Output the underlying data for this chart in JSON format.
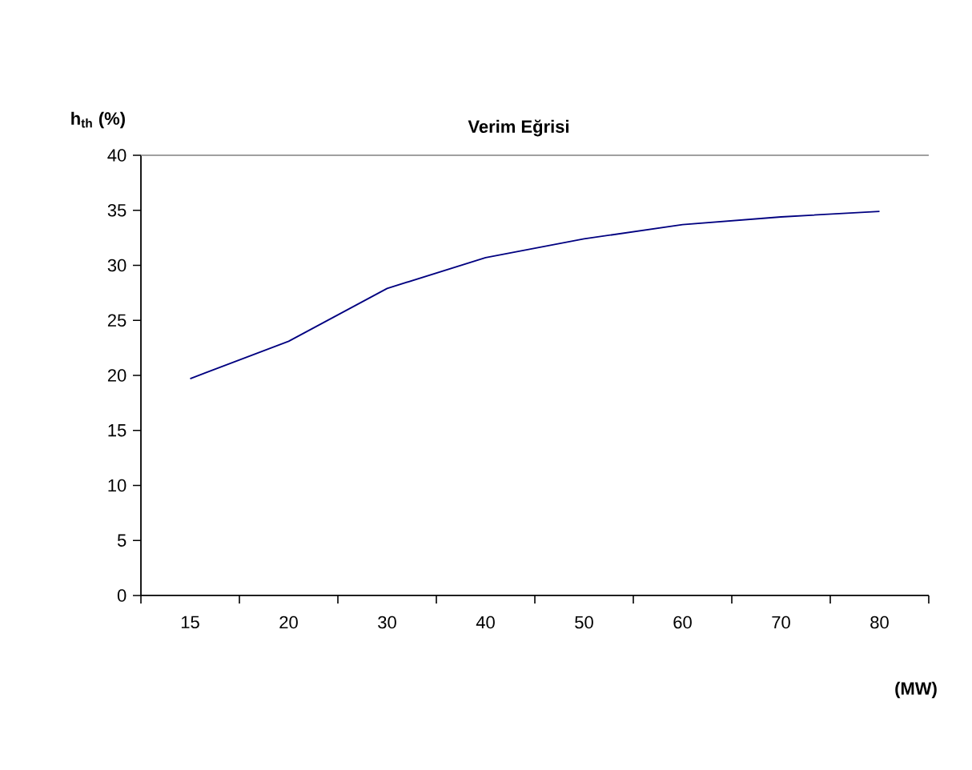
{
  "chart_data": {
    "type": "line",
    "title": "Verim Eğrisi",
    "xlabel": "(MW)",
    "ylabel": "h$_{th}$ (%)",
    "categories": [
      "15",
      "20",
      "30",
      "40",
      "50",
      "60",
      "70",
      "80"
    ],
    "series": [
      {
        "color": "#000080",
        "values": [
          19.7,
          23.1,
          27.9,
          30.7,
          32.4,
          33.7,
          34.4,
          34.9
        ]
      }
    ],
    "ylim": [
      0,
      40
    ],
    "yticks": [
      0,
      5,
      10,
      15,
      20,
      25,
      30,
      35,
      40
    ],
    "marker": "none",
    "line_style": "solid"
  }
}
